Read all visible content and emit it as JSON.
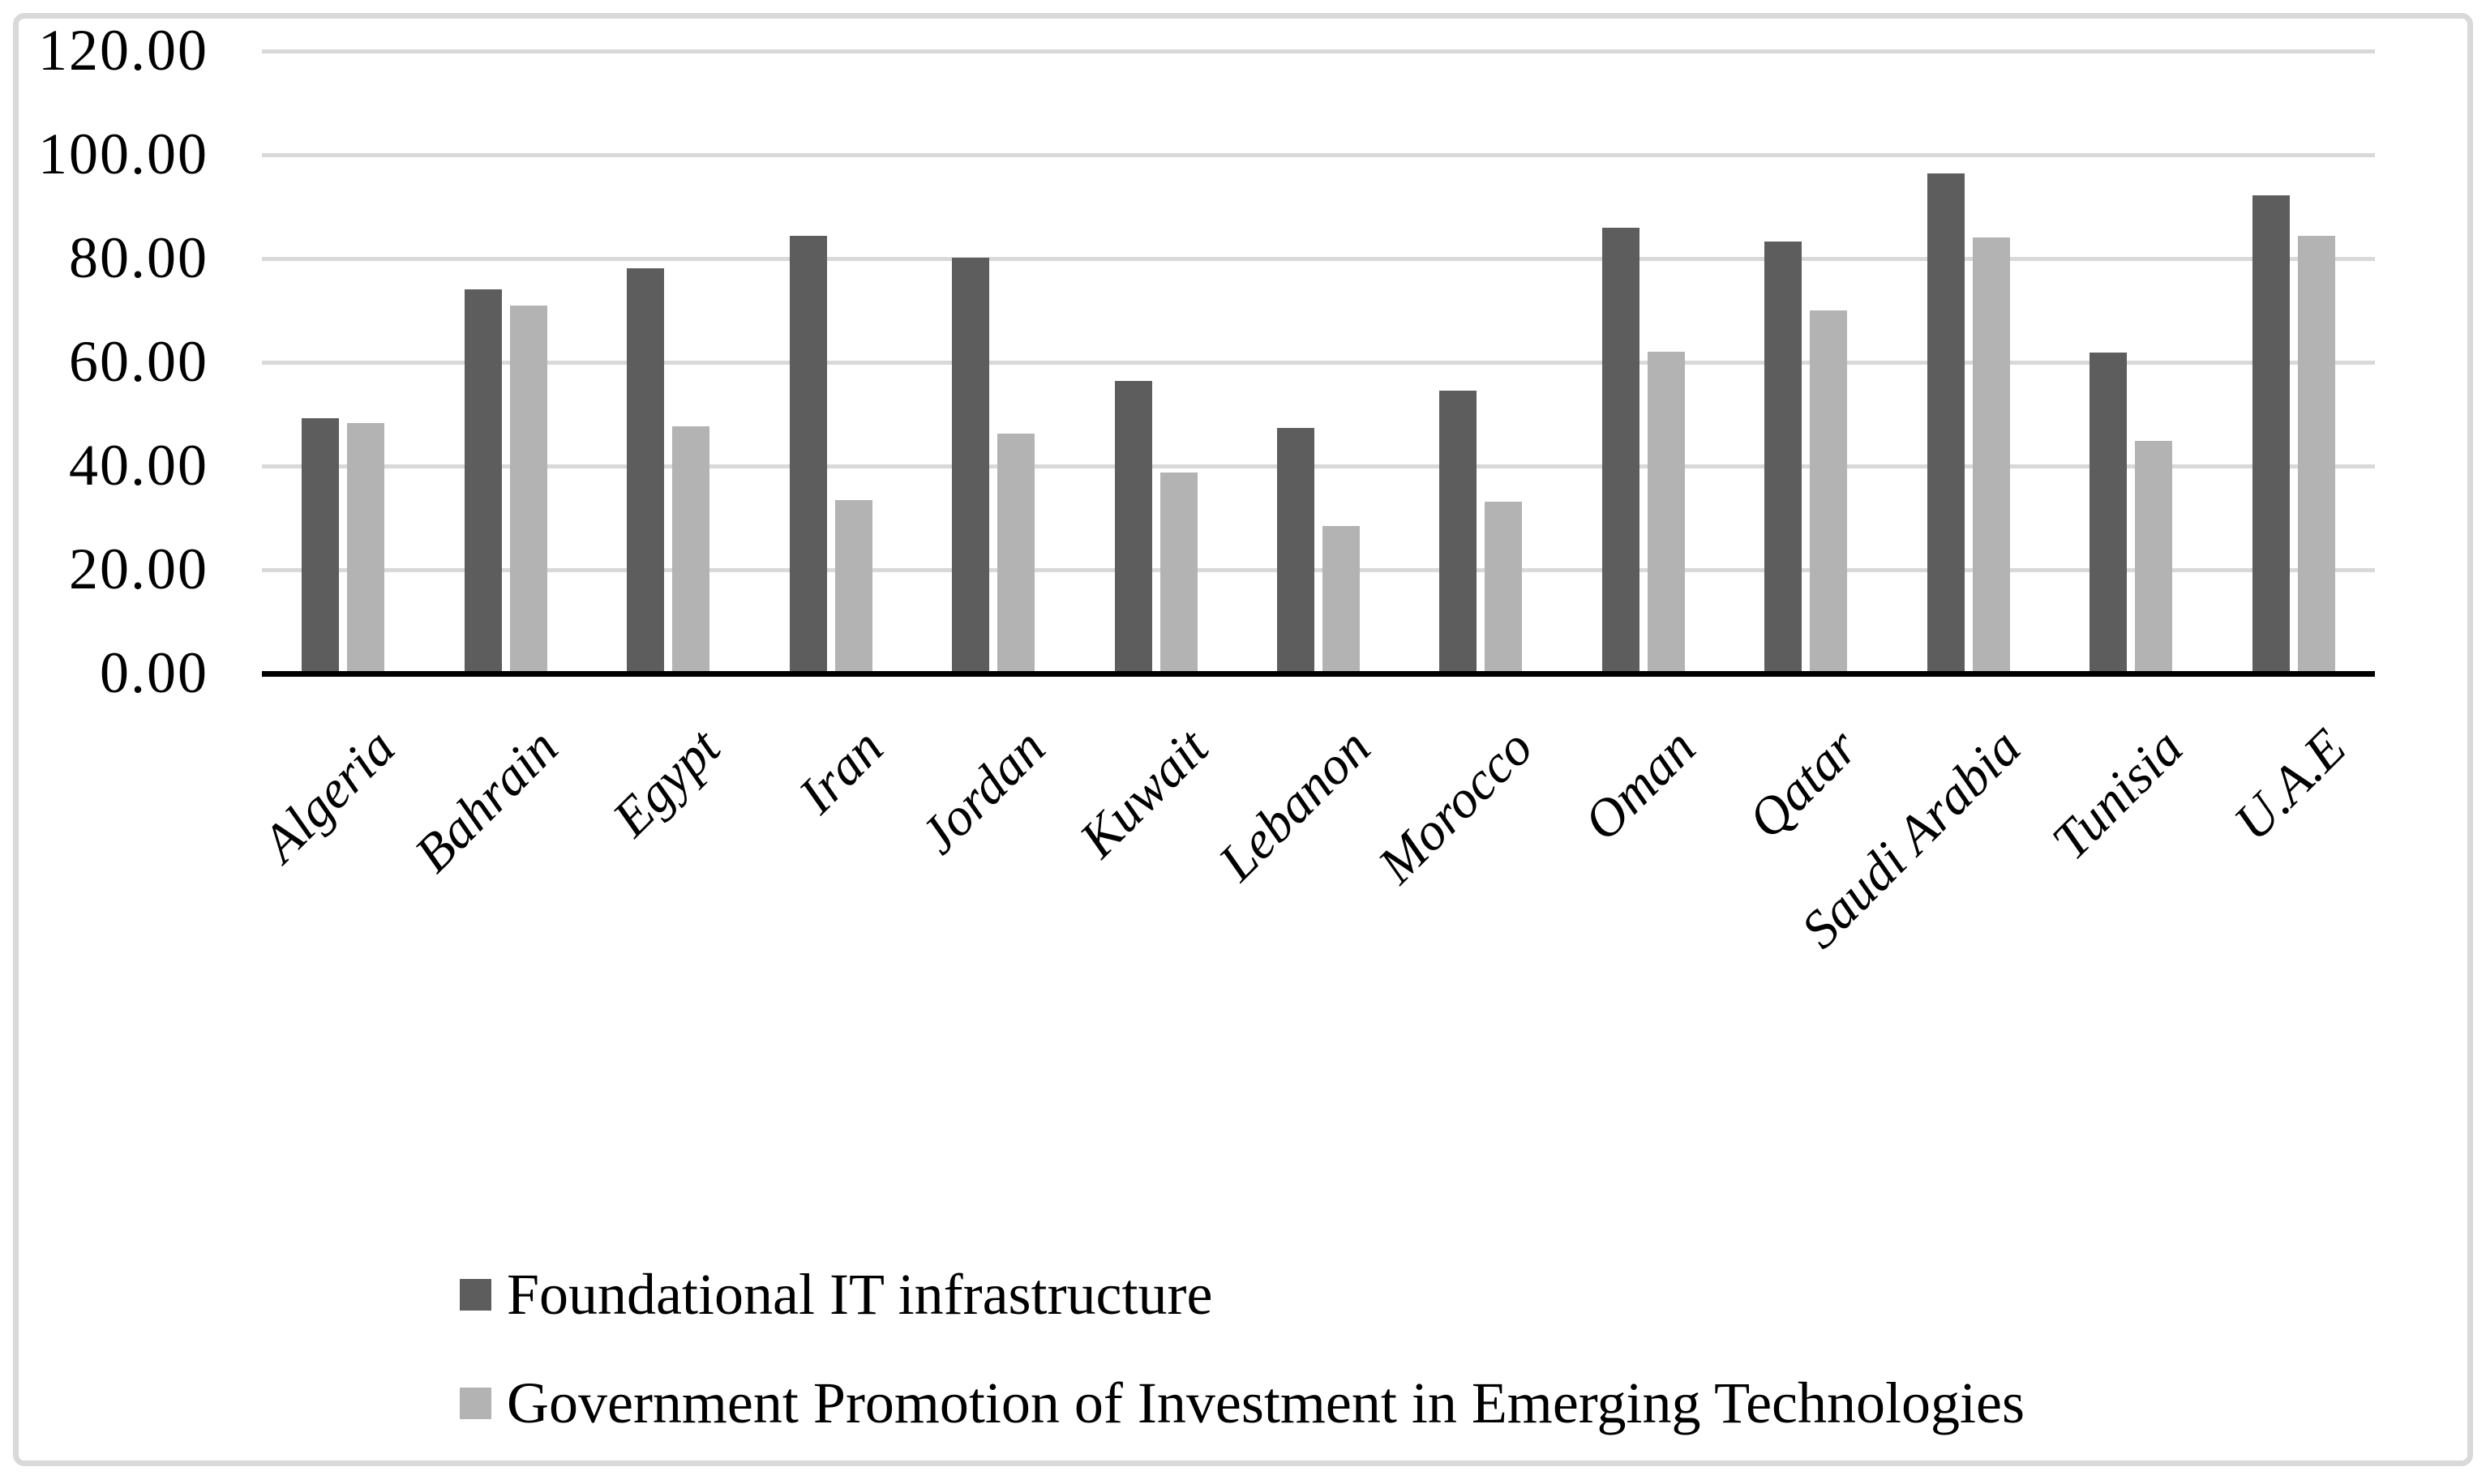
{
  "figure": {
    "background": "#ffffff",
    "frame_color": "#d9d9d9",
    "axis_color": "#000000",
    "gridline_color": "#d9d9d9",
    "text_color": "#000000"
  },
  "chart_data": {
    "type": "bar",
    "title": "",
    "xlabel": "",
    "ylabel": "",
    "ylim": [
      0,
      120
    ],
    "ytick_step": 20,
    "ytick_labels": [
      "0.00",
      "20.00",
      "40.00",
      "60.00",
      "80.00",
      "100.00",
      "120.00"
    ],
    "grid": true,
    "legend_position": "bottom-left",
    "categories": [
      "Algeria",
      "Bahrain",
      "Egypt",
      "Iran",
      "Jordan",
      "Kuwait",
      "Lebanon",
      "Morocco",
      "Oman",
      "Qatar",
      "Saudi Arabia",
      "Tunisia",
      "U.A.E"
    ],
    "series": [
      {
        "name": "Foundational IT infrastructure",
        "color": "#5d5d5e",
        "values": [
          49.2,
          74.0,
          78.2,
          84.3,
          80.1,
          56.4,
          47.3,
          54.6,
          86.0,
          83.3,
          96.4,
          61.9,
          92.2
        ]
      },
      {
        "name": "Government Promotion of Investment in Emerging Technologies",
        "color": "#b3b3b3",
        "values": [
          48.3,
          71.0,
          47.7,
          33.5,
          46.2,
          38.7,
          28.5,
          33.2,
          62.0,
          70.0,
          84.1,
          44.8,
          84.4
        ]
      }
    ]
  },
  "legend": {
    "items": [
      {
        "label": "Foundational IT infrastructure",
        "color": "#5d5d5e"
      },
      {
        "label": "Government Promotion of Investment in Emerging Technologies",
        "color": "#b3b3b3"
      }
    ]
  }
}
